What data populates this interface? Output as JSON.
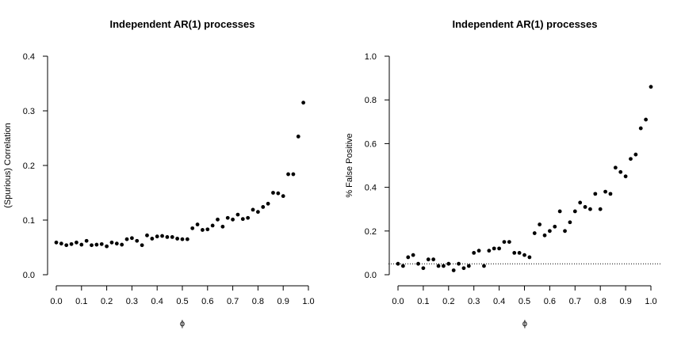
{
  "chart_data": [
    {
      "type": "scatter",
      "title": "Independent AR(1) processes",
      "xlabel": "ϕ",
      "ylabel": "(Spurious) Correlation",
      "xlim": [
        0.0,
        1.0
      ],
      "ylim": [
        0.0,
        0.4
      ],
      "xticks": [
        "0.0",
        "0.1",
        "0.2",
        "0.3",
        "0.4",
        "0.5",
        "0.6",
        "0.7",
        "0.8",
        "0.9",
        "1.0"
      ],
      "yticks": [
        "0.0",
        "0.1",
        "0.2",
        "0.3",
        "0.4"
      ],
      "grid": false,
      "x": [
        0.0,
        0.02,
        0.04,
        0.06,
        0.08,
        0.1,
        0.12,
        0.14,
        0.16,
        0.18,
        0.2,
        0.22,
        0.24,
        0.26,
        0.28,
        0.3,
        0.32,
        0.34,
        0.36,
        0.38,
        0.4,
        0.42,
        0.44,
        0.46,
        0.48,
        0.5,
        0.52,
        0.54,
        0.56,
        0.58,
        0.6,
        0.62,
        0.64,
        0.66,
        0.68,
        0.7,
        0.72,
        0.74,
        0.76,
        0.78,
        0.8,
        0.82,
        0.84,
        0.86,
        0.88,
        0.9,
        0.92,
        0.94,
        0.96,
        0.98
      ],
      "y": [
        0.059,
        0.057,
        0.054,
        0.056,
        0.059,
        0.055,
        0.062,
        0.054,
        0.055,
        0.056,
        0.052,
        0.059,
        0.057,
        0.055,
        0.065,
        0.067,
        0.062,
        0.054,
        0.072,
        0.066,
        0.07,
        0.071,
        0.069,
        0.069,
        0.066,
        0.065,
        0.065,
        0.085,
        0.092,
        0.082,
        0.083,
        0.09,
        0.101,
        0.088,
        0.104,
        0.101,
        0.11,
        0.102,
        0.104,
        0.119,
        0.115,
        0.124,
        0.13,
        0.15,
        0.149,
        0.144,
        0.184,
        0.184,
        0.253,
        0.315
      ]
    },
    {
      "type": "scatter",
      "title": "Independent AR(1) processes",
      "xlabel": "ϕ",
      "ylabel": "% False Positive",
      "xlim": [
        0.0,
        1.0
      ],
      "ylim": [
        0.0,
        1.0
      ],
      "xticks": [
        "0.0",
        "0.1",
        "0.2",
        "0.3",
        "0.4",
        "0.5",
        "0.6",
        "0.7",
        "0.8",
        "0.9",
        "1.0"
      ],
      "yticks": [
        "0.0",
        "0.2",
        "0.4",
        "0.6",
        "0.8",
        "1.0"
      ],
      "grid": false,
      "reference_line": 0.05,
      "x": [
        0.0,
        0.02,
        0.04,
        0.06,
        0.08,
        0.1,
        0.12,
        0.14,
        0.16,
        0.18,
        0.2,
        0.22,
        0.24,
        0.26,
        0.28,
        0.3,
        0.32,
        0.34,
        0.36,
        0.38,
        0.4,
        0.42,
        0.44,
        0.46,
        0.48,
        0.5,
        0.52,
        0.54,
        0.56,
        0.58,
        0.6,
        0.62,
        0.64,
        0.66,
        0.68,
        0.7,
        0.72,
        0.74,
        0.76,
        0.78,
        0.8,
        0.82,
        0.84,
        0.86,
        0.88,
        0.9,
        0.92,
        0.94,
        0.96,
        0.98,
        1.0
      ],
      "y": [
        0.05,
        0.04,
        0.08,
        0.09,
        0.05,
        0.03,
        0.07,
        0.07,
        0.04,
        0.04,
        0.05,
        0.02,
        0.05,
        0.03,
        0.04,
        0.1,
        0.11,
        0.04,
        0.11,
        0.12,
        0.12,
        0.15,
        0.15,
        0.1,
        0.1,
        0.09,
        0.08,
        0.19,
        0.23,
        0.18,
        0.2,
        0.22,
        0.29,
        0.2,
        0.24,
        0.29,
        0.33,
        0.31,
        0.3,
        0.37,
        0.3,
        0.38,
        0.37,
        0.49,
        0.47,
        0.45,
        0.53,
        0.55,
        0.67,
        0.71,
        0.86
      ]
    }
  ]
}
